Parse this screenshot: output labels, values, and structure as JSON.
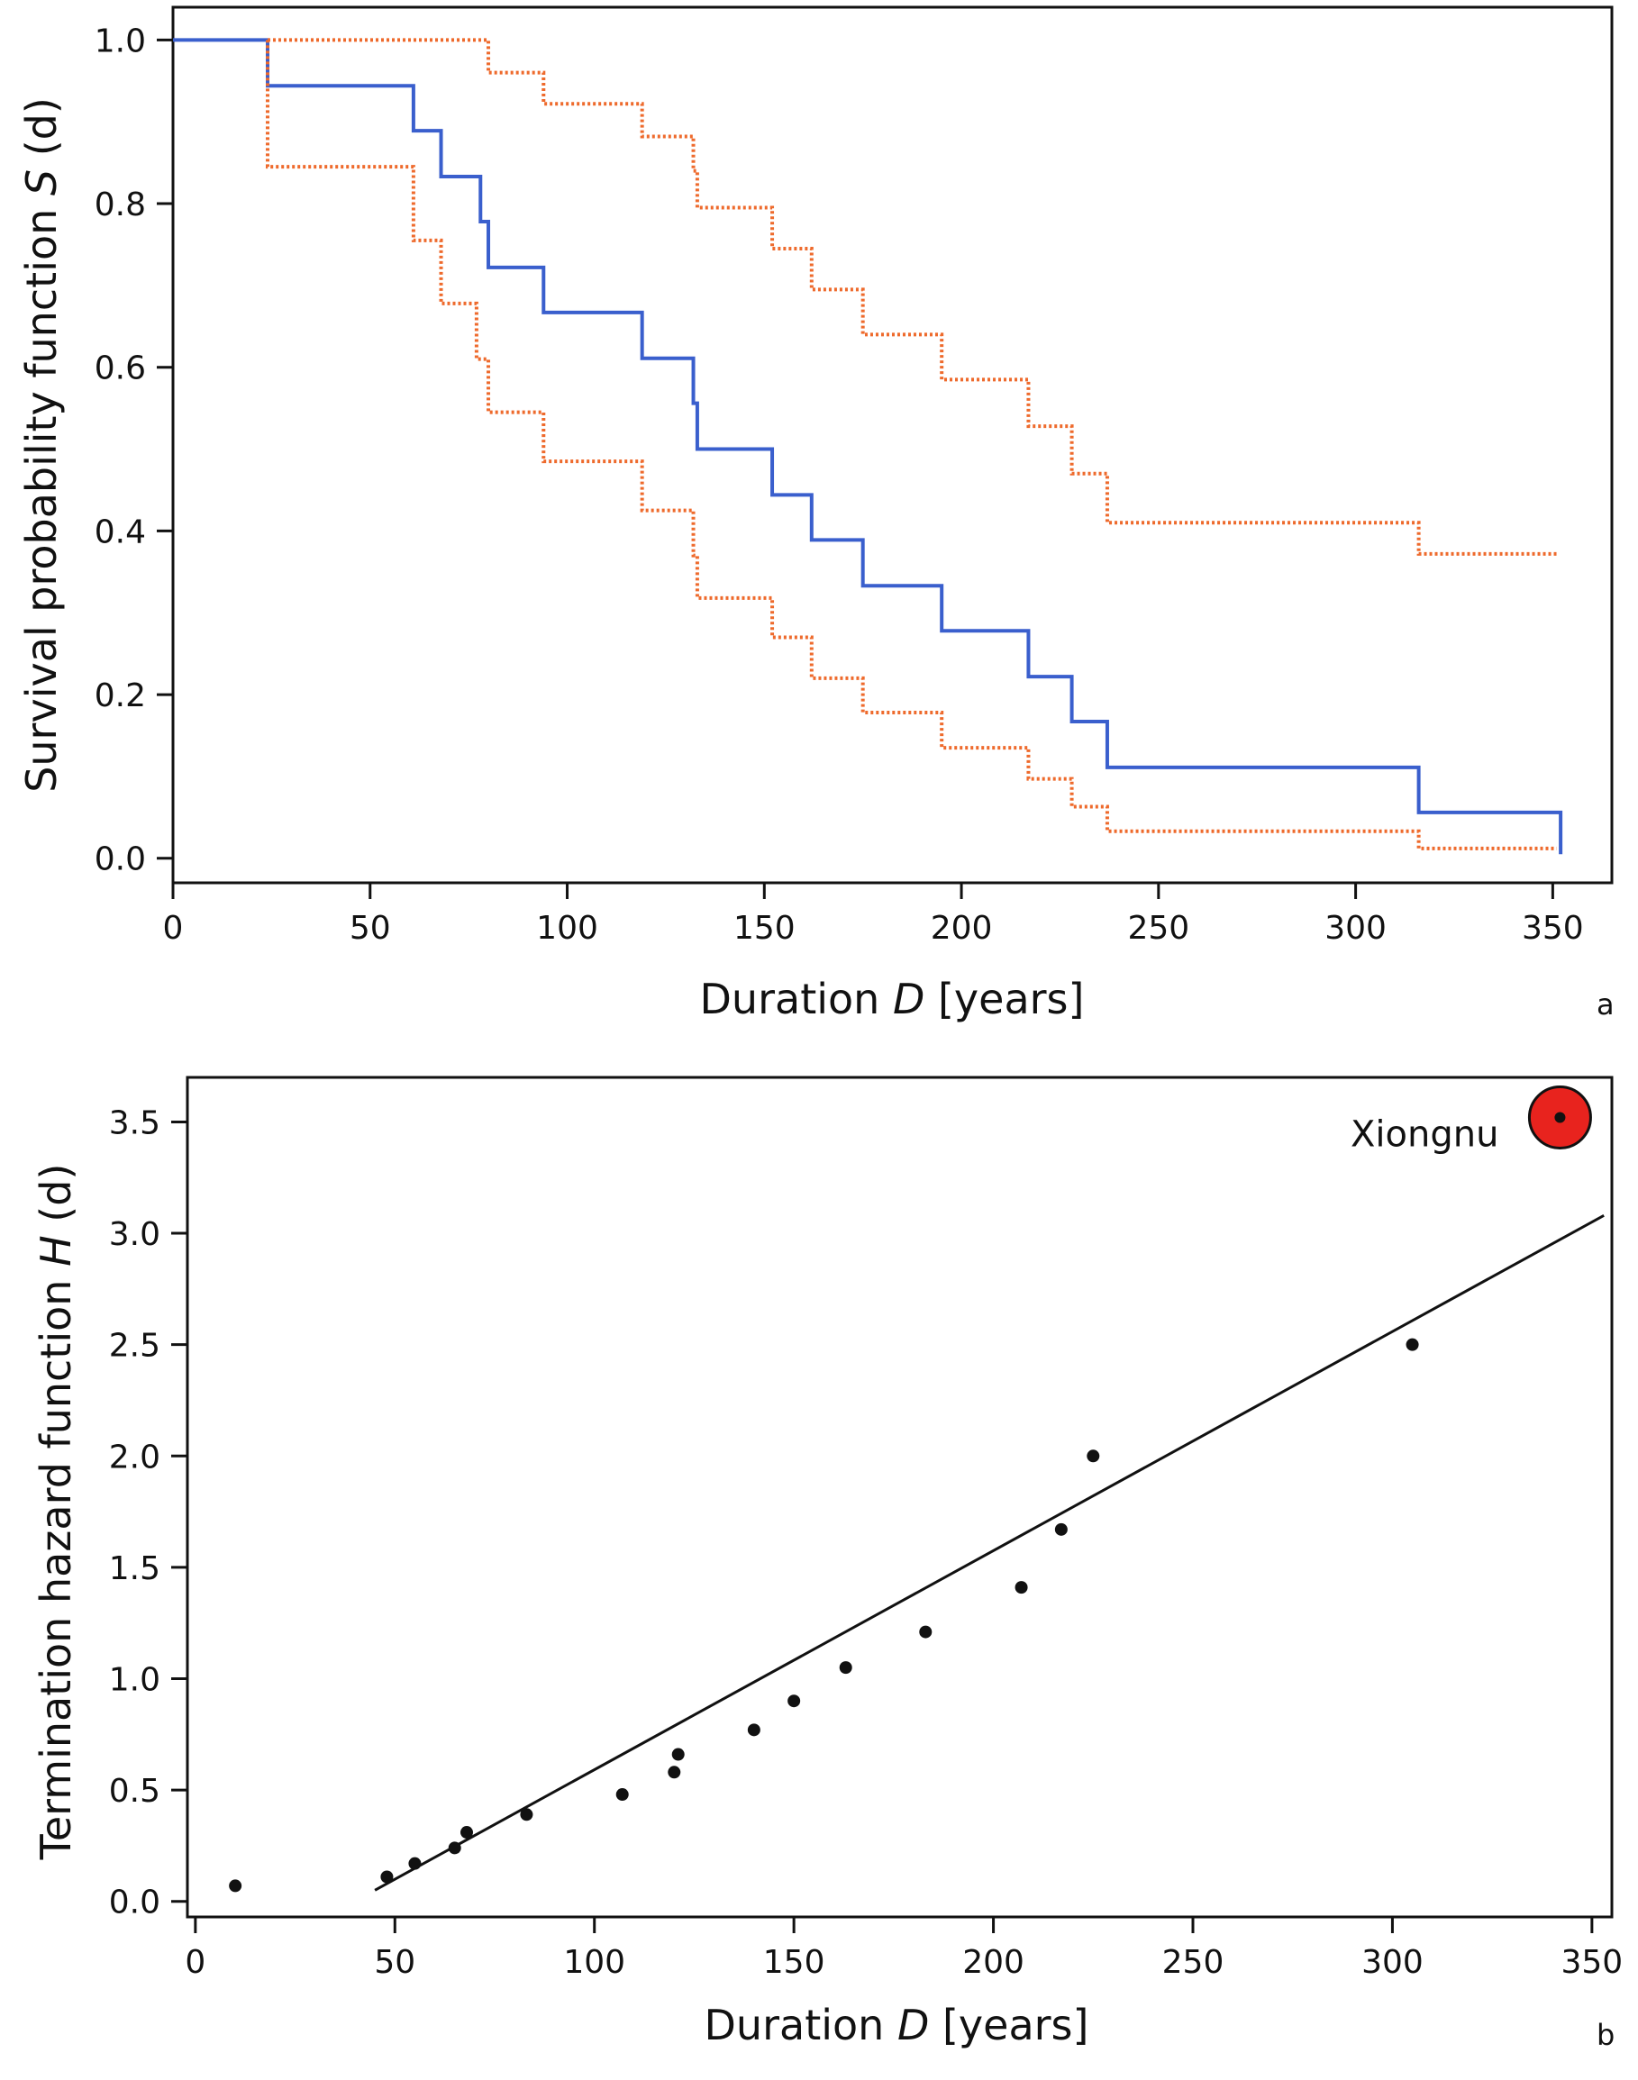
{
  "colors": {
    "estimate": "#3a5fcd",
    "confidence": "#ee6a2c",
    "points": "#111111",
    "highlight": "#e8231e"
  },
  "chart_data": [
    {
      "panel": "a",
      "type": "line",
      "step": true,
      "title": "",
      "xlabel": {
        "main": "Duration ",
        "italic": "D",
        "rest": " [years]"
      },
      "ylabel": {
        "main": "Survival probability function ",
        "italic": "S",
        "rest": " (d)"
      },
      "xlim": [
        0,
        365
      ],
      "ylim": [
        -0.03,
        1.04
      ],
      "xticks": [
        0,
        50,
        100,
        150,
        200,
        250,
        300,
        350
      ],
      "xtick_labels": [
        "0",
        "50",
        "100",
        "150",
        "200",
        "250",
        "300",
        "350"
      ],
      "yticks": [
        0.0,
        0.2,
        0.4,
        0.6,
        0.8,
        1.0
      ],
      "ytick_labels": [
        "0.0",
        "0.2",
        "0.4",
        "0.6",
        "0.8",
        "1.0"
      ],
      "grid": false,
      "series": [
        {
          "style": "solid",
          "color_key": "estimate",
          "x": [
            0,
            24,
            61,
            68,
            78,
            80,
            94,
            119,
            132,
            133,
            152,
            162,
            175,
            195,
            217,
            228,
            237,
            316,
            352,
            352
          ],
          "y": [
            1.0,
            0.944,
            0.889,
            0.833,
            0.778,
            0.722,
            0.667,
            0.611,
            0.556,
            0.5,
            0.444,
            0.389,
            0.333,
            0.278,
            0.222,
            0.167,
            0.111,
            0.056,
            0.056,
            0.005
          ]
        },
        {
          "style": "dotted",
          "color_key": "confidence",
          "x": [
            24,
            78,
            80,
            94,
            119,
            132,
            133,
            152,
            162,
            175,
            195,
            217,
            228,
            237,
            316,
            351
          ],
          "y": [
            1.0,
            1.0,
            0.96,
            0.922,
            0.882,
            0.84,
            0.795,
            0.745,
            0.695,
            0.64,
            0.585,
            0.528,
            0.47,
            0.41,
            0.372,
            0.372
          ]
        },
        {
          "style": "dotted",
          "color_key": "confidence",
          "x": [
            24,
            24,
            61,
            68,
            77,
            78,
            80,
            94,
            119,
            132,
            133,
            152,
            162,
            175,
            195,
            217,
            228,
            237,
            316,
            351
          ],
          "y": [
            1.0,
            0.845,
            0.755,
            0.678,
            0.61,
            0.61,
            0.545,
            0.485,
            0.425,
            0.37,
            0.318,
            0.27,
            0.22,
            0.178,
            0.135,
            0.097,
            0.063,
            0.033,
            0.012,
            0.012
          ]
        }
      ],
      "panel_label": "a"
    },
    {
      "panel": "b",
      "type": "scatter",
      "title": "",
      "xlabel": {
        "main": "Duration ",
        "italic": "D",
        "rest": " [years]"
      },
      "ylabel": {
        "main": "Termination hazard function ",
        "italic": "H",
        "rest": " (d)"
      },
      "xlim": [
        -2,
        355
      ],
      "ylim": [
        -0.07,
        3.7
      ],
      "xticks": [
        0,
        50,
        100,
        150,
        200,
        250,
        300,
        350
      ],
      "xtick_labels": [
        "0",
        "50",
        "100",
        "150",
        "200",
        "250",
        "300",
        "350"
      ],
      "yticks": [
        0.0,
        0.5,
        1.0,
        1.5,
        2.0,
        2.5,
        3.0,
        3.5
      ],
      "ytick_labels": [
        "0.0",
        "0.5",
        "1.0",
        "1.5",
        "2.0",
        "2.5",
        "3.0",
        "3.5"
      ],
      "grid": false,
      "points": {
        "x": [
          10,
          48,
          55,
          65,
          68,
          83,
          107,
          120,
          121,
          140,
          150,
          163,
          183,
          207,
          217,
          225,
          305
        ],
        "y": [
          0.07,
          0.11,
          0.17,
          0.24,
          0.31,
          0.39,
          0.48,
          0.58,
          0.66,
          0.77,
          0.9,
          1.05,
          1.21,
          1.41,
          1.67,
          2.0,
          2.5
        ]
      },
      "fit_line": {
        "x": [
          45,
          353
        ],
        "y": [
          0.05,
          3.08
        ]
      },
      "highlight": {
        "label": "Xiongnu",
        "x": 342,
        "y": 3.52
      },
      "panel_label": "b"
    }
  ]
}
